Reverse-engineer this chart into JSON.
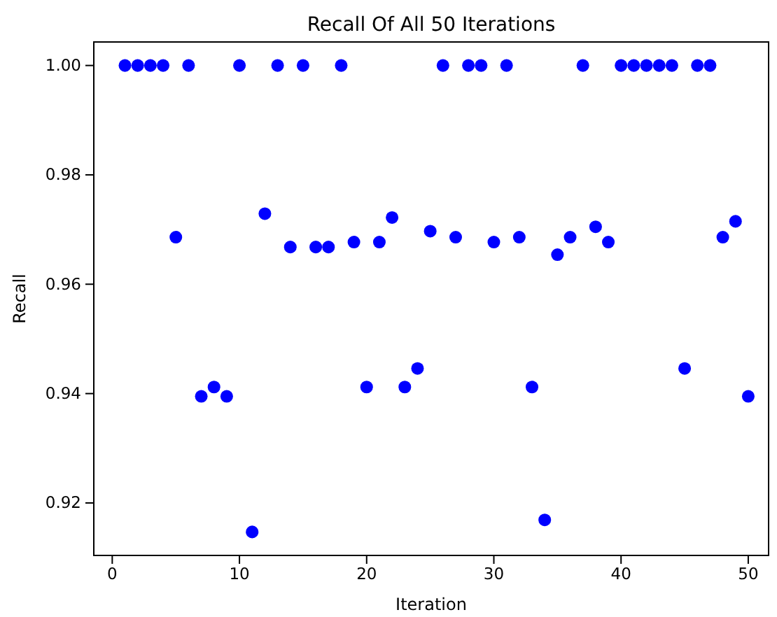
{
  "chart_data": {
    "type": "scatter",
    "title": "Recall Of All 50 Iterations",
    "xlabel": "Iteration",
    "ylabel": "Recall",
    "x": [
      1,
      2,
      3,
      4,
      5,
      6,
      7,
      8,
      9,
      10,
      11,
      12,
      13,
      14,
      15,
      16,
      17,
      18,
      19,
      20,
      21,
      22,
      23,
      24,
      25,
      26,
      27,
      28,
      29,
      30,
      31,
      32,
      33,
      34,
      35,
      36,
      37,
      38,
      39,
      40,
      41,
      42,
      43,
      44,
      45,
      46,
      47,
      48,
      49,
      50
    ],
    "series": [
      {
        "color": "#0000ff",
        "values": [
          1,
          1,
          1,
          1,
          0.9686,
          1,
          0.9395,
          0.9412,
          0.9395,
          1,
          0.9147,
          0.9729,
          1,
          0.9668,
          1,
          0.9668,
          0.9668,
          1,
          0.9677,
          0.9412,
          0.9677,
          0.9722,
          0.9412,
          0.9446,
          0.9697,
          1,
          0.9686,
          1,
          1,
          0.9677,
          1,
          0.9686,
          0.9412,
          0.9169,
          0.9654,
          0.9686,
          1,
          0.9705,
          0.9677,
          1,
          1,
          1,
          1,
          1,
          0.9446,
          1,
          1,
          0.9686,
          0.9715,
          0.9395
        ]
      }
    ],
    "xlim": [
      -1.45,
      51.6
    ],
    "ylim": [
      0.9104,
      1.0043
    ],
    "xticks": [
      0,
      10,
      20,
      30,
      40,
      50
    ],
    "yticks": [
      {
        "value": 0.92,
        "label": "0.92"
      },
      {
        "value": 0.94,
        "label": "0.94"
      },
      {
        "value": 0.96,
        "label": "0.96"
      },
      {
        "value": 0.98,
        "label": "0.98"
      },
      {
        "value": 1.0,
        "label": "1.00"
      }
    ],
    "marker": "circle"
  }
}
